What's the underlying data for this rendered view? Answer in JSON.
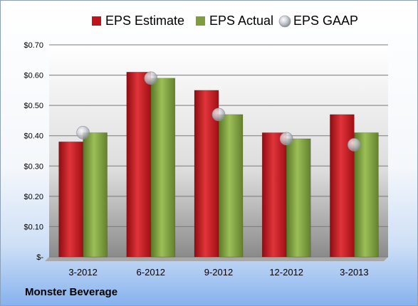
{
  "company": "Monster Beverage",
  "colors": {
    "estimate": "#c0141a",
    "actual": "#7d9e3a",
    "gaap": "#b9bdc4"
  },
  "chart_data": {
    "type": "bar",
    "title": "",
    "xlabel": "",
    "ylabel": "",
    "categories": [
      "3-2012",
      "6-2012",
      "9-2012",
      "12-2012",
      "3-2013"
    ],
    "series": [
      {
        "name": "EPS Estimate",
        "kind": "bar",
        "values": [
          0.38,
          0.61,
          0.55,
          0.41,
          0.47
        ]
      },
      {
        "name": "EPS Actual",
        "kind": "bar",
        "values": [
          0.41,
          0.59,
          0.47,
          0.39,
          0.41
        ]
      },
      {
        "name": "EPS GAAP",
        "kind": "marker",
        "values": [
          0.41,
          0.59,
          0.47,
          0.39,
          0.37
        ]
      }
    ],
    "ylim": [
      0,
      0.7
    ],
    "yticks": [
      0,
      0.1,
      0.2,
      0.3,
      0.4,
      0.5,
      0.6,
      0.7
    ],
    "ytick_labels": [
      "$-",
      "$0.10",
      "$0.20",
      "$0.30",
      "$0.40",
      "$0.50",
      "$0.60",
      "$0.70"
    ],
    "grid": true,
    "legend": "top"
  }
}
